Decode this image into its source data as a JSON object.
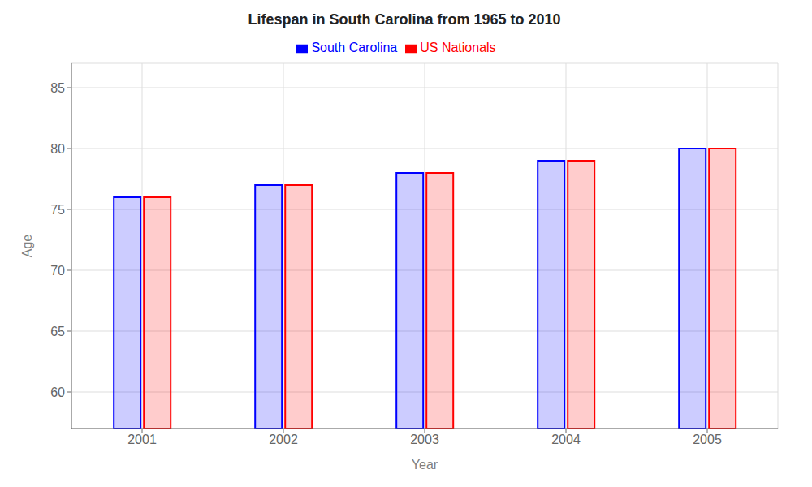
{
  "chart_data": {
    "type": "bar",
    "title": "Lifespan in South Carolina from 1965 to 2010",
    "xlabel": "Year",
    "ylabel": "Age",
    "categories": [
      "2001",
      "2002",
      "2003",
      "2004",
      "2005"
    ],
    "series": [
      {
        "name": "South Carolina",
        "color": "#0000ff",
        "values": [
          76,
          77,
          78,
          79,
          80
        ]
      },
      {
        "name": "US Nationals",
        "color": "#ff0000",
        "values": [
          76,
          77,
          78,
          79,
          80
        ]
      }
    ],
    "ylim": [
      57,
      87
    ],
    "yticks": [
      60,
      65,
      70,
      75,
      80,
      85
    ],
    "grid": true,
    "legend": "top"
  }
}
